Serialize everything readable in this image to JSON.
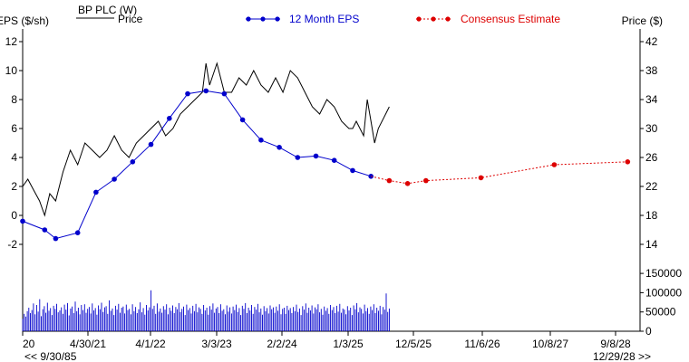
{
  "chart_data": {
    "type": "line",
    "title": "BP PLC (W)",
    "left_axis_label": "EPS ($/sh)",
    "right_axis_label": "Price ($)",
    "left_axis": {
      "ticks": [
        -2,
        0,
        2,
        4,
        6,
        8,
        10,
        12
      ],
      "range": [
        -4,
        12
      ]
    },
    "right_axis": {
      "ticks": [
        14,
        18,
        22,
        26,
        30,
        34,
        38,
        42
      ],
      "range": [
        10,
        42
      ]
    },
    "volume_axis": {
      "ticks": [
        "0",
        "50000",
        "100000",
        "150000"
      ],
      "range": [
        0,
        160000
      ]
    },
    "x_tick_labels": [
      "20",
      "4/30/21",
      "4/1/22",
      "3/3/23",
      "2/2/24",
      "1/3/25",
      "12/5/25",
      "11/6/26",
      "10/8/27",
      "9/8/28"
    ],
    "x_range_start_label": "<< 9/30/85",
    "x_range_end_label": "12/29/28 >>",
    "legend": {
      "price": "Price",
      "eps": "12 Month EPS",
      "consensus": "Consensus Estimate"
    },
    "colors": {
      "price": "#000000",
      "eps": "#0000cc",
      "consensus": "#dd0000",
      "axis": "#000000"
    },
    "eps_series": {
      "name": "12 Month EPS",
      "x": [
        2020.55,
        2020.85,
        2021.0,
        2021.3,
        2021.55,
        2021.8,
        2022.05,
        2022.3,
        2022.55,
        2022.8,
        2023.05,
        2023.3,
        2023.55,
        2023.8,
        2024.05,
        2024.3,
        2024.55,
        2024.8,
        2025.05,
        2025.3
      ],
      "y": [
        -0.4,
        -1.0,
        -1.6,
        -1.2,
        1.6,
        2.5,
        3.7,
        4.9,
        6.7,
        8.4,
        8.6,
        8.4,
        6.6,
        5.2,
        4.7,
        4.0,
        4.1,
        3.8,
        3.1,
        2.7
      ]
    },
    "consensus_series": {
      "name": "Consensus Estimate",
      "x": [
        2025.55,
        2025.8,
        2026.05,
        2026.8,
        2027.8,
        2028.8
      ],
      "y": [
        2.4,
        2.2,
        2.4,
        2.6,
        3.5,
        3.7
      ]
    },
    "price_series": {
      "name": "Price",
      "x": [
        2020.55,
        2020.62,
        2020.7,
        2020.78,
        2020.85,
        2020.92,
        2021.0,
        2021.1,
        2021.2,
        2021.3,
        2021.4,
        2021.5,
        2021.6,
        2021.7,
        2021.8,
        2021.9,
        2022.0,
        2022.1,
        2022.2,
        2022.3,
        2022.4,
        2022.5,
        2022.6,
        2022.7,
        2022.8,
        2022.9,
        2023.0,
        2023.05,
        2023.1,
        2023.2,
        2023.3,
        2023.4,
        2023.5,
        2023.6,
        2023.7,
        2023.8,
        2023.9,
        2024.0,
        2024.1,
        2024.2,
        2024.3,
        2024.4,
        2024.5,
        2024.6,
        2024.7,
        2024.8,
        2024.9,
        2025.0,
        2025.05,
        2025.1,
        2025.2,
        2025.25,
        2025.3,
        2025.35,
        2025.4,
        2025.5,
        2025.55
      ],
      "y": [
        22,
        23,
        21.5,
        20,
        18,
        21,
        20,
        24,
        27,
        25,
        28,
        27,
        26,
        27,
        29,
        27,
        26,
        28,
        29,
        30,
        31,
        29,
        30,
        32,
        33,
        34,
        35,
        39,
        36,
        39,
        35,
        35,
        37,
        36,
        38,
        36,
        35,
        37,
        35,
        38,
        37,
        35,
        33,
        32,
        34,
        33,
        31,
        30,
        30,
        31,
        29,
        34,
        31,
        28,
        30,
        32,
        33
      ]
    },
    "volume_series": {
      "name": "Volume",
      "x_start": 2020.55,
      "x_end": 2025.55,
      "values": [
        32000,
        45000,
        38000,
        52000,
        61000,
        47000,
        55000,
        72000,
        44000,
        68000,
        51000,
        83000,
        39000,
        57000,
        65000,
        48000,
        74000,
        53000,
        60000,
        42000,
        66000,
        58000,
        71000,
        49000,
        54000,
        62000,
        45000,
        69000,
        56000,
        73000,
        41000,
        59000,
        64000,
        47000,
        77000,
        52000,
        61000,
        44000,
        68000,
        55000,
        70000,
        48000,
        58000,
        63000,
        46000,
        72000,
        54000,
        60000,
        43000,
        67000,
        57000,
        74000,
        50000,
        62000,
        65000,
        45000,
        80000,
        53000,
        59000,
        42000,
        66000,
        56000,
        71000,
        48000,
        61000,
        64000,
        46000,
        69000,
        55000,
        58000,
        44000,
        70000,
        52000,
        63000,
        47000,
        57000,
        75000,
        49000,
        60000,
        43000,
        68000,
        54000,
        62000,
        106000,
        58000,
        66000,
        45000,
        72000,
        51000,
        59000,
        48000,
        65000,
        56000,
        70000,
        44000,
        61000,
        53000,
        67000,
        47000,
        63000,
        57000,
        73000,
        50000,
        58000,
        64000,
        42000,
        69000,
        55000,
        60000,
        46000,
        66000,
        52000,
        71000,
        49000,
        62000,
        58000,
        45000,
        68000,
        54000,
        61000,
        43000,
        65000,
        56000,
        72000,
        48000,
        59000,
        63000,
        47000,
        70000,
        53000,
        57000,
        44000,
        67000,
        51000,
        62000,
        46000,
        64000,
        55000,
        69000,
        50000,
        60000,
        42000,
        66000,
        58000,
        73000,
        47000,
        61000,
        54000,
        68000,
        45000,
        63000,
        56000,
        71000,
        49000,
        59000,
        43000,
        65000,
        52000,
        60000,
        46000,
        67000,
        57000,
        62000,
        48000,
        64000,
        53000,
        70000,
        44000,
        58000,
        61000,
        45000,
        66000,
        55000,
        60000,
        47000,
        63000,
        52000,
        69000,
        50000,
        59000,
        42000,
        65000,
        56000,
        72000,
        48000,
        61000,
        54000,
        67000,
        46000,
        62000,
        57000,
        70000,
        49000,
        58000,
        43000,
        64000,
        53000,
        60000,
        45000,
        68000,
        55000,
        63000,
        47000,
        66000,
        51000,
        71000,
        48000,
        59000,
        56000,
        44000,
        65000,
        54000,
        61000,
        42000,
        67000,
        57000,
        73000,
        49000,
        62000,
        58000,
        46000,
        69000,
        52000,
        60000,
        45000,
        64000,
        55000,
        70000,
        47000,
        61000,
        53000,
        66000,
        44000,
        63000,
        56000,
        98000,
        50000,
        59000
      ]
    }
  }
}
